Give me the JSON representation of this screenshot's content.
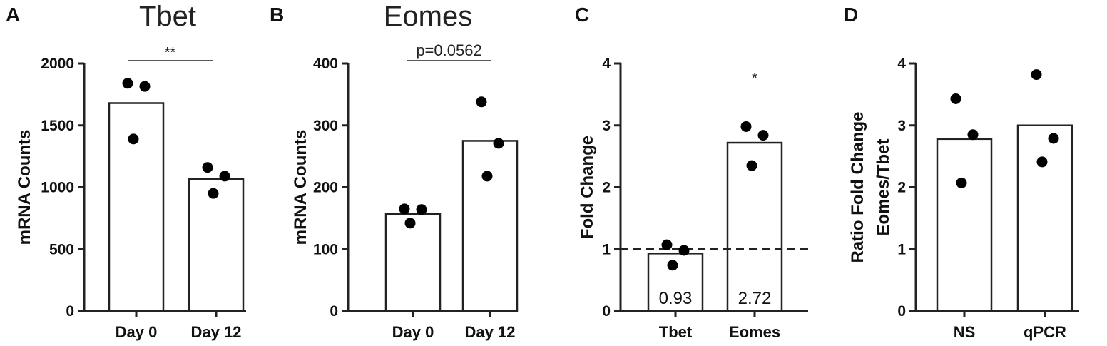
{
  "chart_data": [
    {
      "letter": "A",
      "type": "bar",
      "title": "Tbet",
      "ylabel": "mRNA Counts",
      "xlabel": "",
      "categories": [
        "Day 0",
        "Day 12"
      ],
      "values": [
        1680,
        1065
      ],
      "points": [
        [
          1840,
          1815,
          1390
        ],
        [
          1160,
          1090,
          950
        ]
      ],
      "ylim": [
        0,
        2000
      ],
      "yticks": [
        0,
        500,
        1000,
        1500,
        2000
      ],
      "significance": {
        "text": "**",
        "between": [
          0,
          1
        ],
        "underline_text": false
      }
    },
    {
      "letter": "B",
      "type": "bar",
      "title": "Eomes",
      "ylabel": "mRNA Counts",
      "xlabel": "",
      "categories": [
        "Day 0",
        "Day 12"
      ],
      "values": [
        157,
        275
      ],
      "points": [
        [
          165,
          164,
          142
        ],
        [
          338,
          271,
          218
        ]
      ],
      "ylim": [
        0,
        400
      ],
      "yticks": [
        0,
        100,
        200,
        300,
        400
      ],
      "significance": {
        "text": "p=0.0562",
        "between": [
          0,
          1
        ],
        "underline_text": true
      }
    },
    {
      "letter": "C",
      "type": "bar",
      "title": "",
      "ylabel": "Fold Change",
      "xlabel": "",
      "categories": [
        "Tbet",
        "Eomes"
      ],
      "values": [
        0.93,
        2.72
      ],
      "value_labels": [
        "0.93",
        "2.72"
      ],
      "points": [
        [
          1.07,
          0.98,
          0.74
        ],
        [
          2.98,
          2.84,
          2.35
        ]
      ],
      "ylim": [
        0,
        4
      ],
      "yticks": [
        0,
        1,
        2,
        3,
        4
      ],
      "reference_line": {
        "y": 1,
        "style": "dashed"
      },
      "significance": {
        "text": "*",
        "over": 1
      }
    },
    {
      "letter": "D",
      "type": "bar",
      "title": "",
      "ylabel": "Ratio Fold Change\nEomes/Tbet",
      "xlabel": "",
      "categories": [
        "NS",
        "qPCR"
      ],
      "values": [
        2.78,
        3.0
      ],
      "points": [
        [
          3.43,
          2.85,
          2.07
        ],
        [
          3.82,
          2.79,
          2.41
        ]
      ],
      "ylim": [
        0,
        4
      ],
      "yticks": [
        0,
        1,
        2,
        3,
        4
      ]
    }
  ]
}
